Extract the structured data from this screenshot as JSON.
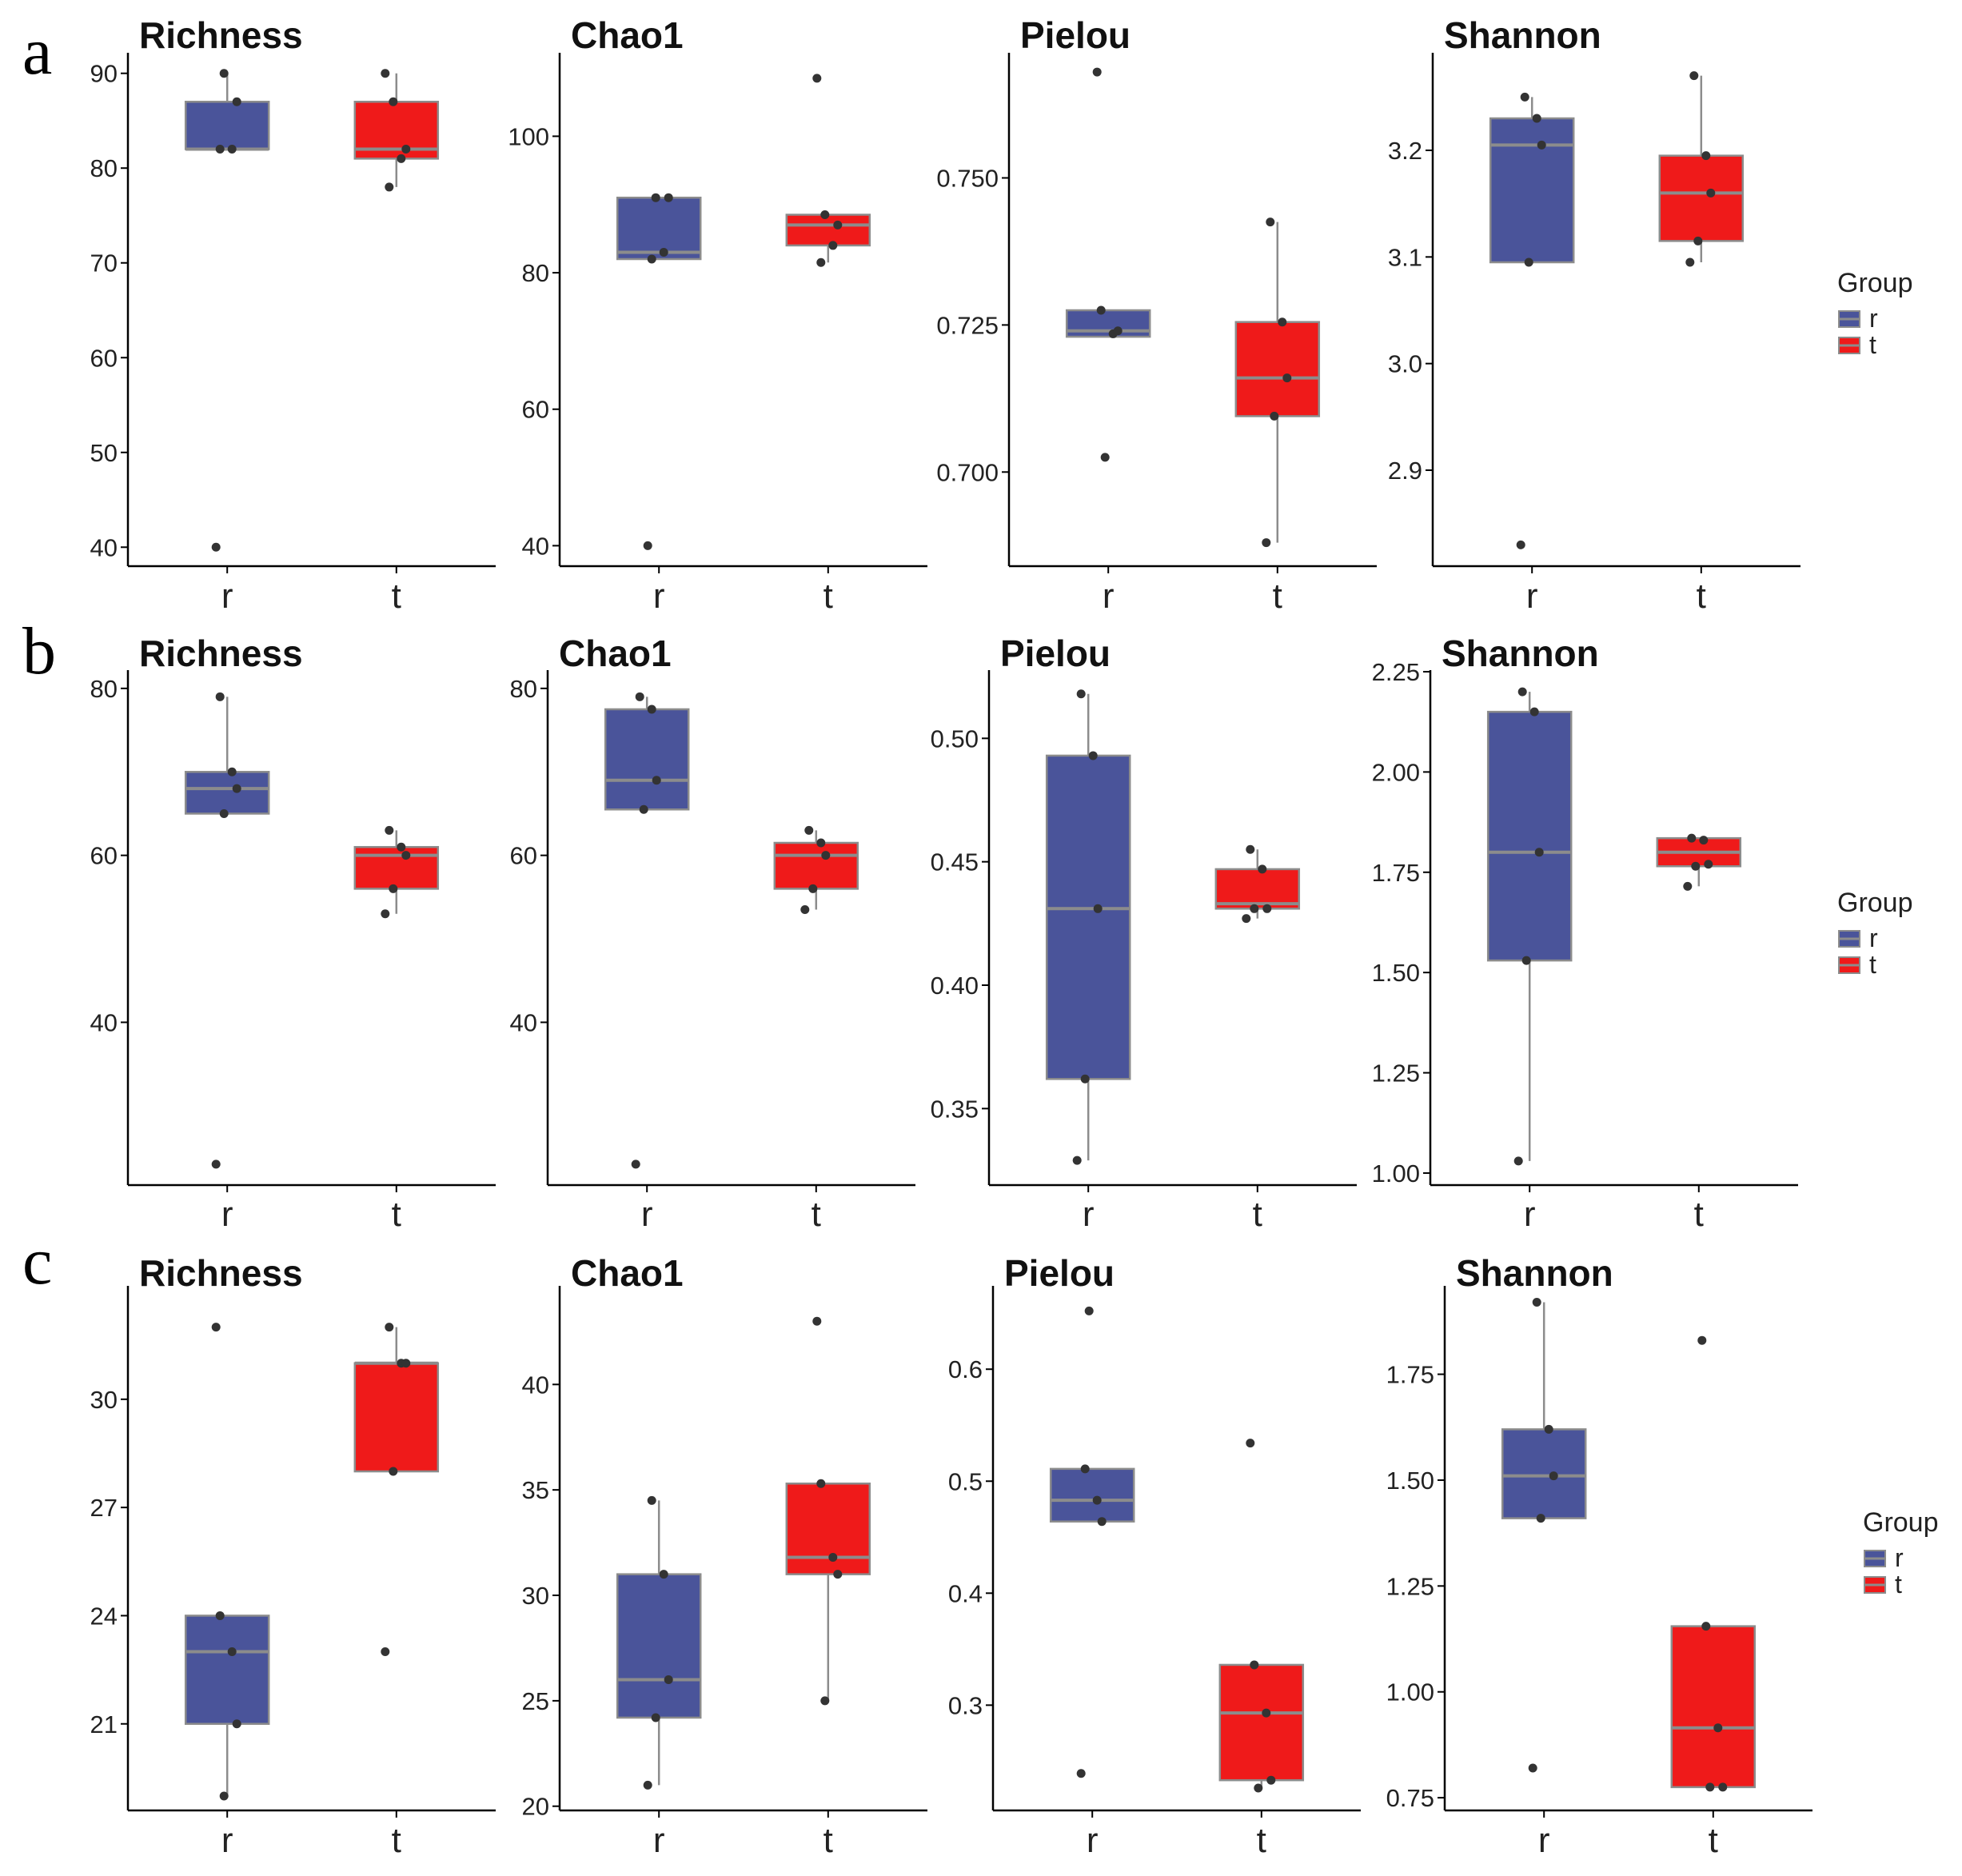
{
  "chart_data": [
    {
      "row": "a",
      "title": "Richness",
      "type": "box",
      "categories": [
        "r",
        "t"
      ],
      "ylim": [
        38,
        92
      ],
      "yticks": [
        40,
        50,
        60,
        70,
        80,
        90
      ],
      "boxes": [
        {
          "group": "r",
          "min": 82,
          "q1": 82,
          "median": 82,
          "q3": 87,
          "max": 90,
          "points": [
            82,
            82,
            87,
            90,
            40
          ]
        },
        {
          "group": "t",
          "min": 78,
          "q1": 81,
          "median": 82,
          "q3": 87,
          "max": 90,
          "points": [
            78,
            81,
            82,
            87,
            90
          ]
        }
      ]
    },
    {
      "row": "a",
      "title": "Chao1",
      "type": "box",
      "categories": [
        "r",
        "t"
      ],
      "ylim": [
        37,
        112
      ],
      "yticks": [
        40,
        60,
        80,
        100
      ],
      "boxes": [
        {
          "group": "r",
          "min": 82,
          "q1": 82,
          "median": 83,
          "q3": 91,
          "max": 91,
          "points": [
            82,
            83,
            91,
            91,
            40
          ]
        },
        {
          "group": "t",
          "min": 81.5,
          "q1": 84,
          "median": 87,
          "q3": 88.5,
          "max": 88.5,
          "points": [
            81.5,
            84,
            87,
            88.5,
            108.5
          ]
        }
      ]
    },
    {
      "row": "a",
      "title": "Pielou",
      "type": "box",
      "categories": [
        "r",
        "t"
      ],
      "ylim": [
        0.684,
        0.771
      ],
      "yticks": [
        0.7,
        0.725,
        0.75
      ],
      "tick_decimals": 3,
      "boxes": [
        {
          "group": "r",
          "min": 0.723,
          "q1": 0.723,
          "median": 0.724,
          "q3": 0.7275,
          "max": 0.7275,
          "points": [
            0.7275,
            0.7235,
            0.724,
            0.7025,
            0.768
          ]
        },
        {
          "group": "t",
          "min": 0.688,
          "q1": 0.7095,
          "median": 0.716,
          "q3": 0.7255,
          "max": 0.7425,
          "points": [
            0.7425,
            0.7255,
            0.716,
            0.7095,
            0.688
          ]
        }
      ]
    },
    {
      "row": "a",
      "title": "Shannon",
      "type": "box",
      "categories": [
        "r",
        "t"
      ],
      "ylim": [
        2.81,
        3.29
      ],
      "yticks": [
        2.9,
        3.0,
        3.1,
        3.2
      ],
      "tick_decimals": 1,
      "boxes": [
        {
          "group": "r",
          "min": 3.095,
          "q1": 3.095,
          "median": 3.205,
          "q3": 3.23,
          "max": 3.25,
          "points": [
            3.25,
            3.23,
            3.205,
            3.095,
            2.83
          ]
        },
        {
          "group": "t",
          "min": 3.095,
          "q1": 3.115,
          "median": 3.16,
          "q3": 3.195,
          "max": 3.27,
          "points": [
            3.27,
            3.195,
            3.16,
            3.115,
            3.095
          ]
        }
      ]
    },
    {
      "row": "b",
      "title": "Richness",
      "type": "box",
      "categories": [
        "r",
        "t"
      ],
      "ylim": [
        20.5,
        82
      ],
      "yticks": [
        40,
        60,
        80
      ],
      "boxes": [
        {
          "group": "r",
          "min": 65,
          "q1": 65,
          "median": 68,
          "q3": 70,
          "max": 79,
          "points": [
            79,
            70,
            68,
            65,
            23
          ]
        },
        {
          "group": "t",
          "min": 53,
          "q1": 56,
          "median": 60,
          "q3": 61,
          "max": 63,
          "points": [
            63,
            61,
            60,
            56,
            53
          ]
        }
      ]
    },
    {
      "row": "b",
      "title": "Chao1",
      "type": "box",
      "categories": [
        "r",
        "t"
      ],
      "ylim": [
        20.5,
        82
      ],
      "yticks": [
        40,
        60,
        80
      ],
      "boxes": [
        {
          "group": "r",
          "min": 65.5,
          "q1": 65.5,
          "median": 69,
          "q3": 77.5,
          "max": 79,
          "points": [
            79,
            77.5,
            69,
            65.5,
            23
          ]
        },
        {
          "group": "t",
          "min": 53.5,
          "q1": 56,
          "median": 60,
          "q3": 61.5,
          "max": 63,
          "points": [
            63,
            61.5,
            60,
            56,
            53.5
          ]
        }
      ]
    },
    {
      "row": "b",
      "title": "Pielou",
      "type": "box",
      "categories": [
        "r",
        "t"
      ],
      "ylim": [
        0.319,
        0.527
      ],
      "yticks": [
        0.35,
        0.4,
        0.45,
        0.5
      ],
      "tick_decimals": 2,
      "boxes": [
        {
          "group": "r",
          "min": 0.329,
          "q1": 0.362,
          "median": 0.431,
          "q3": 0.493,
          "max": 0.518,
          "points": [
            0.518,
            0.493,
            0.431,
            0.362,
            0.329
          ]
        },
        {
          "group": "t",
          "min": 0.427,
          "q1": 0.431,
          "median": 0.433,
          "q3": 0.447,
          "max": 0.455,
          "points": [
            0.455,
            0.447,
            0.431,
            0.431,
            0.427
          ]
        }
      ]
    },
    {
      "row": "b",
      "title": "Shannon",
      "type": "box",
      "categories": [
        "r",
        "t"
      ],
      "ylim": [
        0.97,
        2.25
      ],
      "yticks": [
        1.0,
        1.25,
        1.5,
        1.75,
        2.0,
        2.25
      ],
      "tick_decimals": 2,
      "boxes": [
        {
          "group": "r",
          "min": 1.03,
          "q1": 1.53,
          "median": 1.8,
          "q3": 2.15,
          "max": 2.2,
          "points": [
            2.2,
            2.15,
            1.8,
            1.53,
            1.03
          ]
        },
        {
          "group": "t",
          "min": 1.715,
          "q1": 1.765,
          "median": 1.8,
          "q3": 1.835,
          "max": 1.835,
          "points": [
            1.835,
            1.83,
            1.77,
            1.765,
            1.715
          ]
        }
      ]
    },
    {
      "row": "c",
      "title": "Richness",
      "type": "box",
      "categories": [
        "r",
        "t"
      ],
      "ylim": [
        18.6,
        33.1
      ],
      "yticks": [
        21,
        24,
        27,
        30
      ],
      "boxes": [
        {
          "group": "r",
          "min": 19,
          "q1": 21,
          "median": 23,
          "q3": 24,
          "max": 24,
          "points": [
            24,
            23,
            21,
            19,
            32
          ]
        },
        {
          "group": "t",
          "min": 28,
          "q1": 28,
          "median": 31,
          "q3": 31,
          "max": 32,
          "points": [
            32,
            31,
            31,
            28,
            23
          ]
        }
      ]
    },
    {
      "row": "c",
      "title": "Chao1",
      "type": "box",
      "categories": [
        "r",
        "t"
      ],
      "ylim": [
        19.8,
        44.6
      ],
      "yticks": [
        20,
        25,
        30,
        35,
        40
      ],
      "boxes": [
        {
          "group": "r",
          "min": 21,
          "q1": 24.2,
          "median": 26,
          "q3": 31,
          "max": 34.5,
          "points": [
            34.5,
            31,
            26,
            24.2,
            21
          ]
        },
        {
          "group": "t",
          "min": 25,
          "q1": 31,
          "median": 31.8,
          "q3": 35.3,
          "max": 35.3,
          "points": [
            35.3,
            31.8,
            31,
            25,
            43
          ]
        }
      ]
    },
    {
      "row": "c",
      "title": "Pielou",
      "type": "box",
      "categories": [
        "r",
        "t"
      ],
      "ylim": [
        0.206,
        0.673
      ],
      "yticks": [
        0.3,
        0.4,
        0.5,
        0.6
      ],
      "tick_decimals": 1,
      "boxes": [
        {
          "group": "r",
          "min": 0.464,
          "q1": 0.464,
          "median": 0.483,
          "q3": 0.511,
          "max": 0.511,
          "points": [
            0.511,
            0.483,
            0.464,
            0.652,
            0.239
          ]
        },
        {
          "group": "t",
          "min": 0.226,
          "q1": 0.233,
          "median": 0.293,
          "q3": 0.336,
          "max": 0.336,
          "points": [
            0.336,
            0.293,
            0.233,
            0.226,
            0.534
          ]
        }
      ]
    },
    {
      "row": "c",
      "title": "Shannon",
      "type": "box",
      "categories": [
        "r",
        "t"
      ],
      "ylim": [
        0.72,
        1.955
      ],
      "yticks": [
        0.75,
        1.0,
        1.25,
        1.5,
        1.75
      ],
      "tick_decimals": 2,
      "boxes": [
        {
          "group": "r",
          "min": 1.41,
          "q1": 1.41,
          "median": 1.51,
          "q3": 1.62,
          "max": 1.92,
          "points": [
            1.92,
            1.62,
            1.51,
            1.41,
            0.82
          ]
        },
        {
          "group": "t",
          "min": 0.775,
          "q1": 0.775,
          "median": 0.915,
          "q3": 1.155,
          "max": 1.155,
          "points": [
            1.155,
            0.915,
            0.775,
            0.775,
            1.83
          ]
        }
      ]
    }
  ],
  "row_labels": [
    "a",
    "b",
    "c"
  ],
  "legend": {
    "title": "Group",
    "items": [
      {
        "label": "r",
        "color": "#4a549a"
      },
      {
        "label": "t",
        "color": "#ef1a1a"
      }
    ]
  },
  "colors": {
    "r": "#4a549a",
    "t": "#ef1a1a",
    "median": "#8c8c8c",
    "whisker": "#8c8c8c",
    "point": "#333333",
    "axis": "#000000"
  }
}
